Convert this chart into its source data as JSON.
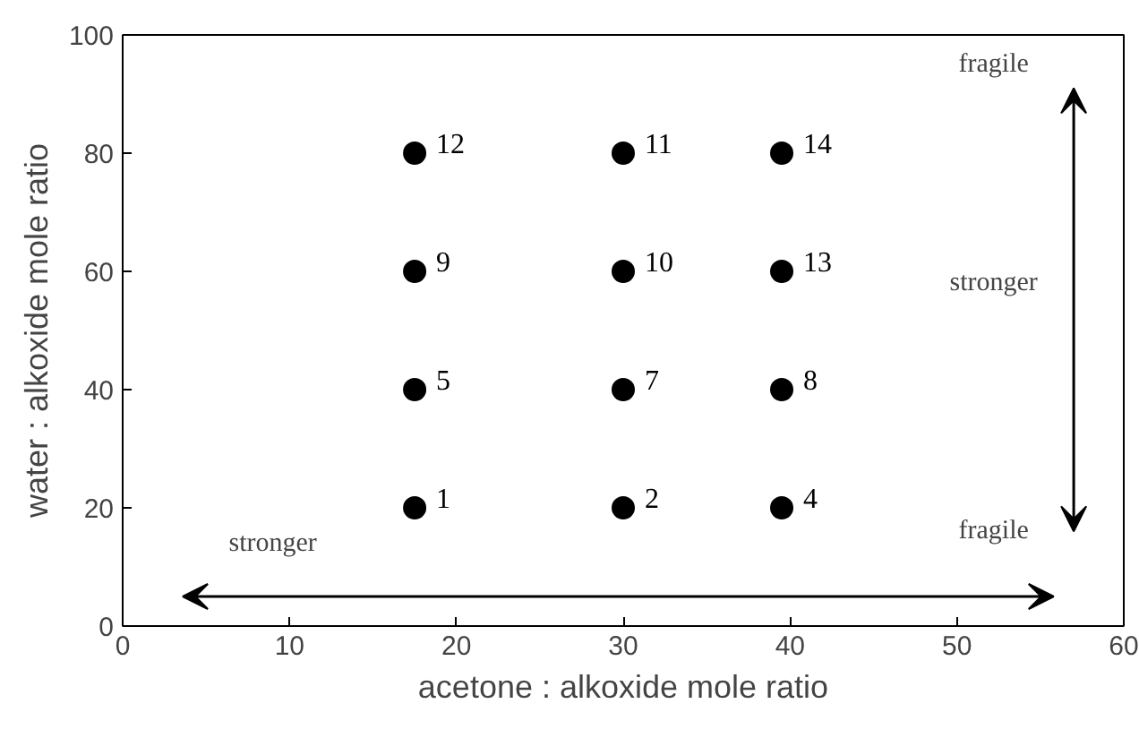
{
  "chart_data": {
    "type": "scatter",
    "xlabel": "acetone : alkoxide mole ratio",
    "ylabel": "water : alkoxide mole ratio",
    "series": [
      {
        "name": "1",
        "color": "#000000",
        "x": [
          17.5
        ],
        "values": [
          20
        ]
      },
      {
        "name": "2",
        "color": "#000000",
        "x": [
          30
        ],
        "values": [
          20
        ]
      },
      {
        "name": "4",
        "color": "#000000",
        "x": [
          39.5
        ],
        "values": [
          20
        ]
      },
      {
        "name": "5",
        "color": "#000000",
        "x": [
          17.5
        ],
        "values": [
          40
        ]
      },
      {
        "name": "7",
        "color": "#000000",
        "x": [
          30
        ],
        "values": [
          40
        ]
      },
      {
        "name": "8",
        "color": "#000000",
        "x": [
          39.5
        ],
        "values": [
          40
        ]
      },
      {
        "name": "9",
        "color": "#000000",
        "x": [
          17.5
        ],
        "values": [
          60
        ]
      },
      {
        "name": "10",
        "color": "#000000",
        "x": [
          30
        ],
        "values": [
          60
        ]
      },
      {
        "name": "13",
        "color": "#000000",
        "x": [
          39.5
        ],
        "values": [
          60
        ]
      },
      {
        "name": "12",
        "color": "#000000",
        "x": [
          17.5
        ],
        "values": [
          80
        ]
      },
      {
        "name": "11",
        "color": "#000000",
        "x": [
          30
        ],
        "values": [
          80
        ]
      },
      {
        "name": "14",
        "color": "#000000",
        "x": [
          39.5
        ],
        "values": [
          80
        ]
      }
    ],
    "marker": "circle",
    "xlim": [
      0,
      60
    ],
    "xticks": [
      0,
      10,
      20,
      30,
      40,
      50,
      60
    ],
    "ylim": [
      0,
      100
    ],
    "yticks": [
      0,
      20,
      40,
      60,
      80,
      100
    ],
    "annotations": [
      "fragile",
      "stronger",
      "fragile",
      "stronger"
    ]
  }
}
